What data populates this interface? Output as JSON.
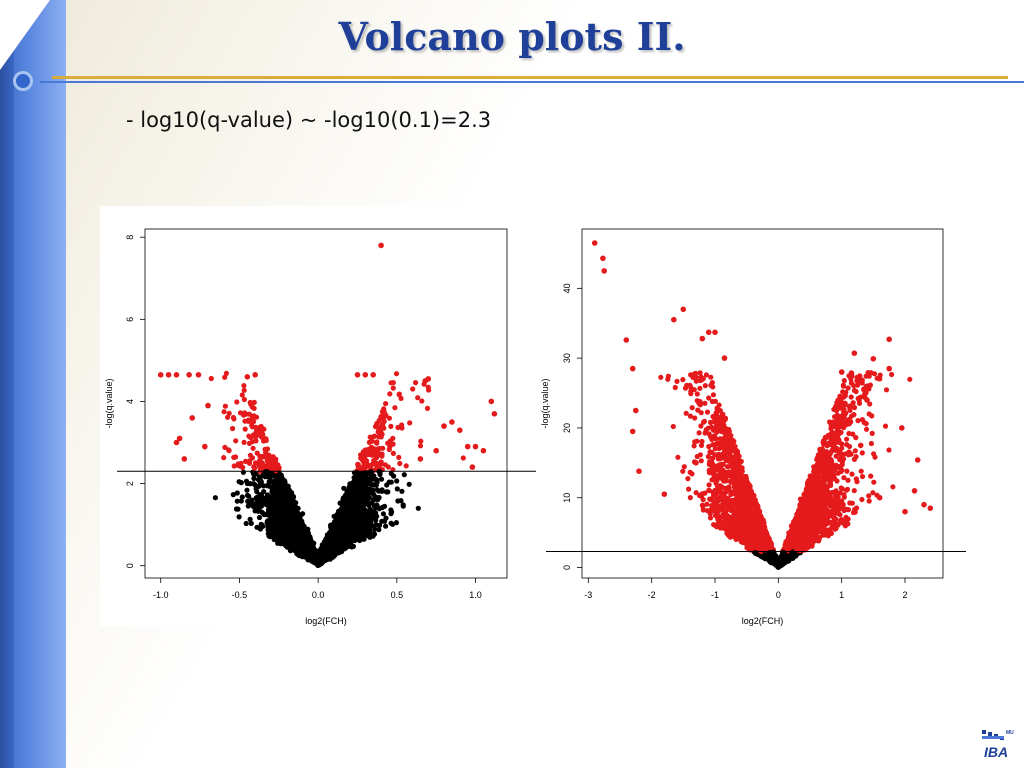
{
  "slide": {
    "title": "Volcano plots II.",
    "subtitle": "- log10(q-value) ~ -log10(0.1)=2.3",
    "logo_text": "IBA",
    "logo_small_text": "MU"
  },
  "colors": {
    "significant": "#e41a1c",
    "non_significant": "#000000",
    "title": "#1f3f99",
    "accent_blue": "#4a78d6",
    "accent_gold": "#d9ad3c"
  },
  "chart_data": [
    {
      "type": "scatter",
      "title": "",
      "xlabel": "log2(FCH)",
      "ylabel": "-log(q.value)",
      "xlim": [
        -1.1,
        1.2
      ],
      "ylim": [
        -0.3,
        8.2
      ],
      "xticks": [
        -1.0,
        -0.5,
        0.0,
        0.5,
        1.0
      ],
      "xtick_labels": [
        "-1.0",
        "-0.5",
        "0.0",
        "0.5",
        "1.0"
      ],
      "yticks": [
        0,
        2,
        4,
        6,
        8
      ],
      "ytick_labels": [
        "0",
        "2",
        "4",
        "6",
        "8"
      ],
      "threshold": 2.3,
      "threshold_color": "#000000",
      "series": [
        {
          "color": "#e41a1c",
          "points": [
            [
              0.4,
              7.8
            ],
            [
              -1.0,
              4.65
            ],
            [
              -0.95,
              4.65
            ],
            [
              -0.9,
              4.65
            ],
            [
              -0.82,
              4.65
            ],
            [
              -0.76,
              4.65
            ],
            [
              1.1,
              4.0
            ],
            [
              1.12,
              3.7
            ],
            [
              0.9,
              3.3
            ],
            [
              0.85,
              3.5
            ],
            [
              0.95,
              2.9
            ],
            [
              1.0,
              2.9
            ],
            [
              0.98,
              2.4
            ],
            [
              -0.88,
              3.1
            ],
            [
              -0.8,
              3.6
            ],
            [
              -0.85,
              2.6
            ],
            [
              0.7,
              4.55
            ],
            [
              0.68,
              4.5
            ],
            [
              0.3,
              4.65
            ],
            [
              0.35,
              4.65
            ],
            [
              0.25,
              4.65
            ],
            [
              -0.4,
              4.65
            ],
            [
              -0.45,
              4.6
            ],
            [
              0.65,
              2.6
            ],
            [
              0.75,
              2.8
            ],
            [
              -0.72,
              2.9
            ],
            [
              -0.7,
              3.9
            ],
            [
              1.05,
              2.8
            ],
            [
              0.8,
              3.4
            ],
            [
              -0.9,
              3.0
            ]
          ]
        }
      ]
    },
    {
      "type": "scatter",
      "title": "",
      "xlabel": "log2(FCH)",
      "ylabel": "-log(q.value)",
      "xlim": [
        -3.1,
        2.6
      ],
      "ylim": [
        -1.5,
        48.5
      ],
      "xticks": [
        -3,
        -2,
        -1,
        0,
        1,
        2
      ],
      "xtick_labels": [
        "-3",
        "-2",
        "-1",
        "0",
        "1",
        "2"
      ],
      "yticks": [
        0,
        10,
        20,
        30,
        40
      ],
      "ytick_labels": [
        "0",
        "10",
        "20",
        "30",
        "40"
      ],
      "threshold": 2.3,
      "threshold_color": "#000000",
      "series": [
        {
          "color": "#e41a1c",
          "points": [
            [
              -2.9,
              46.5
            ],
            [
              -2.77,
              44.3
            ],
            [
              -2.75,
              42.5
            ],
            [
              -1.5,
              37.0
            ],
            [
              -1.65,
              35.5
            ],
            [
              -1.1,
              33.7
            ],
            [
              -1.0,
              33.7
            ],
            [
              -1.2,
              32.8
            ],
            [
              -0.85,
              30.0
            ],
            [
              -2.4,
              32.6
            ],
            [
              -2.3,
              28.5
            ],
            [
              1.75,
              32.7
            ],
            [
              1.2,
              30.7
            ],
            [
              1.5,
              29.9
            ],
            [
              1.75,
              28.5
            ],
            [
              1.0,
              28.0
            ],
            [
              1.4,
              24.0
            ],
            [
              2.2,
              15.4
            ],
            [
              2.15,
              11.0
            ],
            [
              2.4,
              8.5
            ],
            [
              2.3,
              9.0
            ],
            [
              1.95,
              20.0
            ],
            [
              2.0,
              8.0
            ],
            [
              -2.2,
              13.8
            ],
            [
              -2.3,
              19.5
            ],
            [
              -2.25,
              22.5
            ],
            [
              -1.8,
              10.5
            ],
            [
              -1.3,
              15.0
            ],
            [
              1.6,
              10.0
            ],
            [
              1.3,
              17.5
            ]
          ]
        }
      ]
    }
  ]
}
